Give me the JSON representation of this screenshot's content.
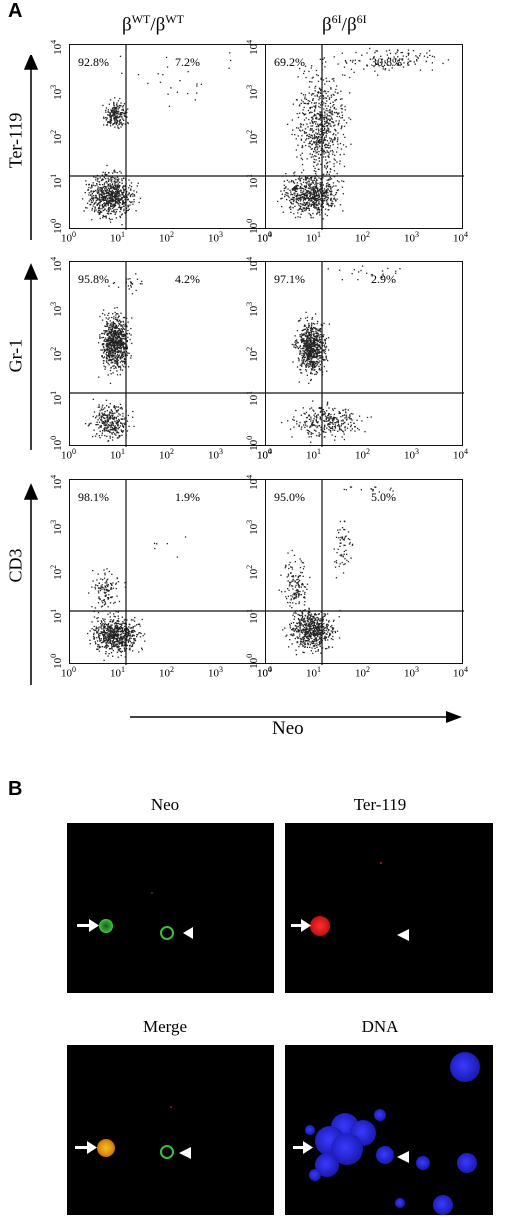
{
  "panel_a": {
    "letter": "A",
    "col_titles": [
      {
        "base": "β",
        "sup1": "WT",
        "mid": "/β",
        "sup2": "WT"
      },
      {
        "base": "β",
        "sup1": "6I",
        "mid": "/β",
        "sup2": "6I"
      }
    ],
    "row_labels": [
      "Ter-119",
      "Gr-1",
      "CD3"
    ],
    "x_label": "Neo",
    "tick_base": "10",
    "tick_exps": [
      "0",
      "1",
      "2",
      "3",
      "4"
    ],
    "percents": [
      [
        "92.8%",
        "7.2%",
        "69.2%",
        "30.8%"
      ],
      [
        "95.8%",
        "4.2%",
        "97.1%",
        "2.9%"
      ],
      [
        "98.1%",
        "1.9%",
        "95.0%",
        "5.0%"
      ]
    ]
  },
  "panel_b": {
    "letter": "B",
    "titles": [
      "Neo",
      "Ter-119",
      "Merge",
      "DNA"
    ]
  }
}
